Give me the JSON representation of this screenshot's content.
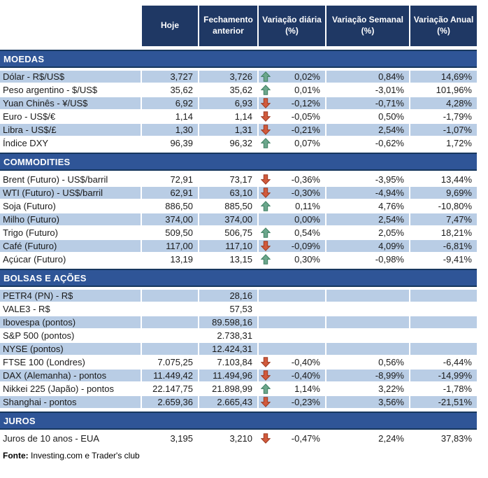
{
  "colors": {
    "header_bg": "#1F3864",
    "band_bg": "#2F5597",
    "row_shaded": "#B9CDE5",
    "border_dark": "#17375E",
    "text": "#1A1A1A",
    "up_fill": "#6CA78C",
    "up_stroke": "#3E7F62",
    "down_fill": "#D15A3C",
    "down_stroke": "#9C3A22"
  },
  "icons": {
    "up": "block-arrow-up",
    "down": "block-arrow-down"
  },
  "footer": {
    "prefix": "Fonte:",
    "text": " Investing.com e Trader's club"
  },
  "chart_data": {
    "type": "table",
    "columns": [
      "",
      "Hoje",
      "Fechamento anterior",
      "Variação diária (%)",
      "Variação Semanal (%)",
      "Variação Anual (%)"
    ],
    "sections": [
      {
        "id": "moedas",
        "title": "MOEDAS",
        "zebra_start": "shaded",
        "rows": [
          {
            "label": "Dólar - R$/US$",
            "hoje": "3,727",
            "fechamento": "3,726",
            "arrow": "up",
            "var_diaria": "0,02%",
            "var_semanal": "0,84%",
            "var_anual": "14,69%"
          },
          {
            "label": "Peso argentino - $/US$",
            "hoje": "35,62",
            "fechamento": "35,62",
            "arrow": "up",
            "var_diaria": "0,01%",
            "var_semanal": "-3,01%",
            "var_anual": "101,96%"
          },
          {
            "label": "Yuan Chinês - ¥/US$",
            "hoje": "6,92",
            "fechamento": "6,93",
            "arrow": "down",
            "var_diaria": "-0,12%",
            "var_semanal": "-0,71%",
            "var_anual": "4,28%"
          },
          {
            "label": "Euro - US$/€",
            "hoje": "1,14",
            "fechamento": "1,14",
            "arrow": "down",
            "var_diaria": "-0,05%",
            "var_semanal": "0,50%",
            "var_anual": "-1,79%"
          },
          {
            "label": "Libra - US$/£",
            "hoje": "1,30",
            "fechamento": "1,31",
            "arrow": "down",
            "var_diaria": "-0,21%",
            "var_semanal": "2,54%",
            "var_anual": "-1,07%"
          },
          {
            "label": "Índice DXY",
            "hoje": "96,39",
            "fechamento": "96,32",
            "arrow": "up",
            "var_diaria": "0,07%",
            "var_semanal": "-0,62%",
            "var_anual": "1,72%"
          }
        ]
      },
      {
        "id": "commodities",
        "title": "COMMODITIES",
        "zebra_start": "white",
        "rows": [
          {
            "label": "Brent (Futuro) - US$/barril",
            "hoje": "72,91",
            "fechamento": "73,17",
            "arrow": "down",
            "var_diaria": "-0,36%",
            "var_semanal": "-3,95%",
            "var_anual": "13,44%"
          },
          {
            "label": "WTI (Futuro) - US$/barril",
            "hoje": "62,91",
            "fechamento": "63,10",
            "arrow": "down",
            "var_diaria": "-0,30%",
            "var_semanal": "-4,94%",
            "var_anual": "9,69%"
          },
          {
            "label": "Soja (Futuro)",
            "hoje": "886,50",
            "fechamento": "885,50",
            "arrow": "up",
            "var_diaria": "0,11%",
            "var_semanal": "4,76%",
            "var_anual": "-10,80%"
          },
          {
            "label": "Milho (Futuro)",
            "hoje": "374,00",
            "fechamento": "374,00",
            "arrow": "none",
            "var_diaria": "0,00%",
            "var_semanal": "2,54%",
            "var_anual": "7,47%"
          },
          {
            "label": "Trigo (Futuro)",
            "hoje": "509,50",
            "fechamento": "506,75",
            "arrow": "up",
            "var_diaria": "0,54%",
            "var_semanal": "2,05%",
            "var_anual": "18,21%"
          },
          {
            "label": "Café (Futuro)",
            "hoje": "117,00",
            "fechamento": "117,10",
            "arrow": "down",
            "var_diaria": "-0,09%",
            "var_semanal": "4,09%",
            "var_anual": "-6,81%"
          },
          {
            "label": "Açúcar (Futuro)",
            "hoje": "13,19",
            "fechamento": "13,15",
            "arrow": "up",
            "var_diaria": "0,30%",
            "var_semanal": "-0,98%",
            "var_anual": "-9,41%"
          }
        ]
      },
      {
        "id": "bolsas",
        "title": "BOLSAS E AÇÕES",
        "zebra_start": "shaded",
        "rows": [
          {
            "label": "PETR4 (PN) - R$",
            "hoje": "",
            "fechamento": "28,16",
            "arrow": "none",
            "var_diaria": "",
            "var_semanal": "",
            "var_anual": ""
          },
          {
            "label": "VALE3 - R$",
            "hoje": "",
            "fechamento": "57,53",
            "arrow": "none",
            "var_diaria": "",
            "var_semanal": "",
            "var_anual": ""
          },
          {
            "label": "Ibovespa (pontos)",
            "hoje": "",
            "fechamento": "89.598,16",
            "arrow": "none",
            "var_diaria": "",
            "var_semanal": "",
            "var_anual": ""
          },
          {
            "label": "S&P 500 (pontos)",
            "hoje": "",
            "fechamento": "2.738,31",
            "arrow": "none",
            "var_diaria": "",
            "var_semanal": "",
            "var_anual": ""
          },
          {
            "label": "NYSE (pontos)",
            "hoje": "",
            "fechamento": "12.424,31",
            "arrow": "none",
            "var_diaria": "",
            "var_semanal": "",
            "var_anual": ""
          },
          {
            "label": "FTSE 100 (Londres)",
            "hoje": "7.075,25",
            "fechamento": "7.103,84",
            "arrow": "down",
            "var_diaria": "-0,40%",
            "var_semanal": "0,56%",
            "var_anual": "-6,44%"
          },
          {
            "label": "DAX (Alemanha) - pontos",
            "hoje": "11.449,42",
            "fechamento": "11.494,96",
            "arrow": "down",
            "var_diaria": "-0,40%",
            "var_semanal": "-8,99%",
            "var_anual": "-14,99%"
          },
          {
            "label": "Nikkei 225 (Japão) - pontos",
            "hoje": "22.147,75",
            "fechamento": "21.898,99",
            "arrow": "up",
            "var_diaria": "1,14%",
            "var_semanal": "3,22%",
            "var_anual": "-1,78%"
          },
          {
            "label": "Shanghai - pontos",
            "hoje": "2.659,36",
            "fechamento": "2.665,43",
            "arrow": "down",
            "var_diaria": "-0,23%",
            "var_semanal": "3,56%",
            "var_anual": "-21,51%"
          }
        ]
      },
      {
        "id": "juros",
        "title": "JUROS",
        "zebra_start": "white",
        "rows": [
          {
            "label": "Juros de 10 anos - EUA",
            "hoje": "3,195",
            "fechamento": "3,210",
            "arrow": "down",
            "var_diaria": "-0,47%",
            "var_semanal": "2,24%",
            "var_anual": "37,83%"
          }
        ]
      }
    ]
  }
}
